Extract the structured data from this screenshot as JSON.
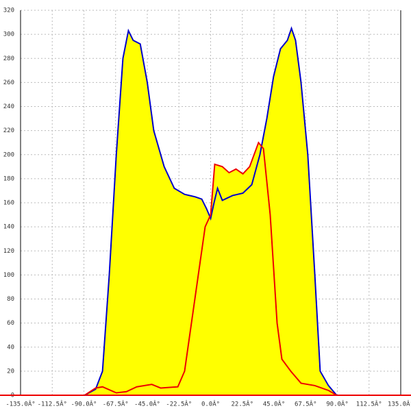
{
  "chart_data": {
    "type": "area",
    "xlim": [
      -135,
      135
    ],
    "xticks": [
      {
        "value": -135,
        "label": "-135.0Â°"
      },
      {
        "value": -112.5,
        "label": "-112.5Â°"
      },
      {
        "value": -90,
        "label": "-90.0Â°"
      },
      {
        "value": -67.5,
        "label": "-67.5Â°"
      },
      {
        "value": -45,
        "label": "-45.0Â°"
      },
      {
        "value": -22.5,
        "label": "-22.5Â°"
      },
      {
        "value": 0,
        "label": "0.0Â°"
      },
      {
        "value": 22.5,
        "label": "22.5Â°"
      },
      {
        "value": 45,
        "label": "45.0Â°"
      },
      {
        "value": 67.5,
        "label": "67.5Â°"
      },
      {
        "value": 90,
        "label": "90.0Â°"
      },
      {
        "value": 112.5,
        "label": "112.5Â°"
      },
      {
        "value": 135,
        "label": "135.0Â°"
      }
    ],
    "ylim": [
      0,
      320
    ],
    "yticks": [
      0,
      20,
      40,
      60,
      80,
      100,
      120,
      140,
      160,
      180,
      200,
      220,
      240,
      260,
      280,
      300,
      320
    ],
    "grid": true,
    "fill": "#ffff00",
    "series": [
      {
        "color": "#0000cc",
        "x": [
          -89.5,
          -81.7,
          -76.8,
          -72,
          -67,
          -62.3,
          -58.4,
          -55,
          -50,
          -45,
          -40.4,
          -33,
          -25.8,
          -18.5,
          -11.2,
          -6.3,
          -2.9,
          0,
          2.4,
          4.9,
          8.3,
          15.6,
          22.9,
          29.2,
          35,
          39.9,
          44.7,
          49.6,
          54.5,
          57.4,
          60.3,
          64.2,
          69,
          74,
          77.8,
          83.7,
          89.5
        ],
        "values": [
          0,
          5,
          20,
          100,
          200,
          280,
          303,
          295,
          292,
          260,
          220,
          190,
          172,
          167,
          165,
          163,
          155,
          147,
          160,
          172,
          162,
          166,
          168,
          175,
          200,
          230,
          265,
          288,
          295,
          305,
          295,
          260,
          200,
          100,
          20,
          8,
          0
        ]
      },
      {
        "color": "#ee0000",
        "x": [
          -89.5,
          -81.7,
          -76.8,
          -67,
          -59.8,
          -52.5,
          -41.8,
          -35.5,
          -23.3,
          -18.5,
          -11.2,
          -3.9,
          0,
          2.9,
          8.3,
          13.1,
          18,
          22.9,
          27.7,
          34,
          37.5,
          42.3,
          47.2,
          50.6,
          56.9,
          64.2,
          74,
          83.7,
          89.5
        ],
        "values": [
          0,
          6,
          7,
          2,
          3,
          7,
          9,
          6,
          7,
          20,
          80,
          140,
          150,
          192,
          190,
          185,
          188,
          184,
          190,
          210,
          205,
          150,
          60,
          30,
          20,
          10,
          8,
          4,
          0
        ]
      }
    ]
  }
}
